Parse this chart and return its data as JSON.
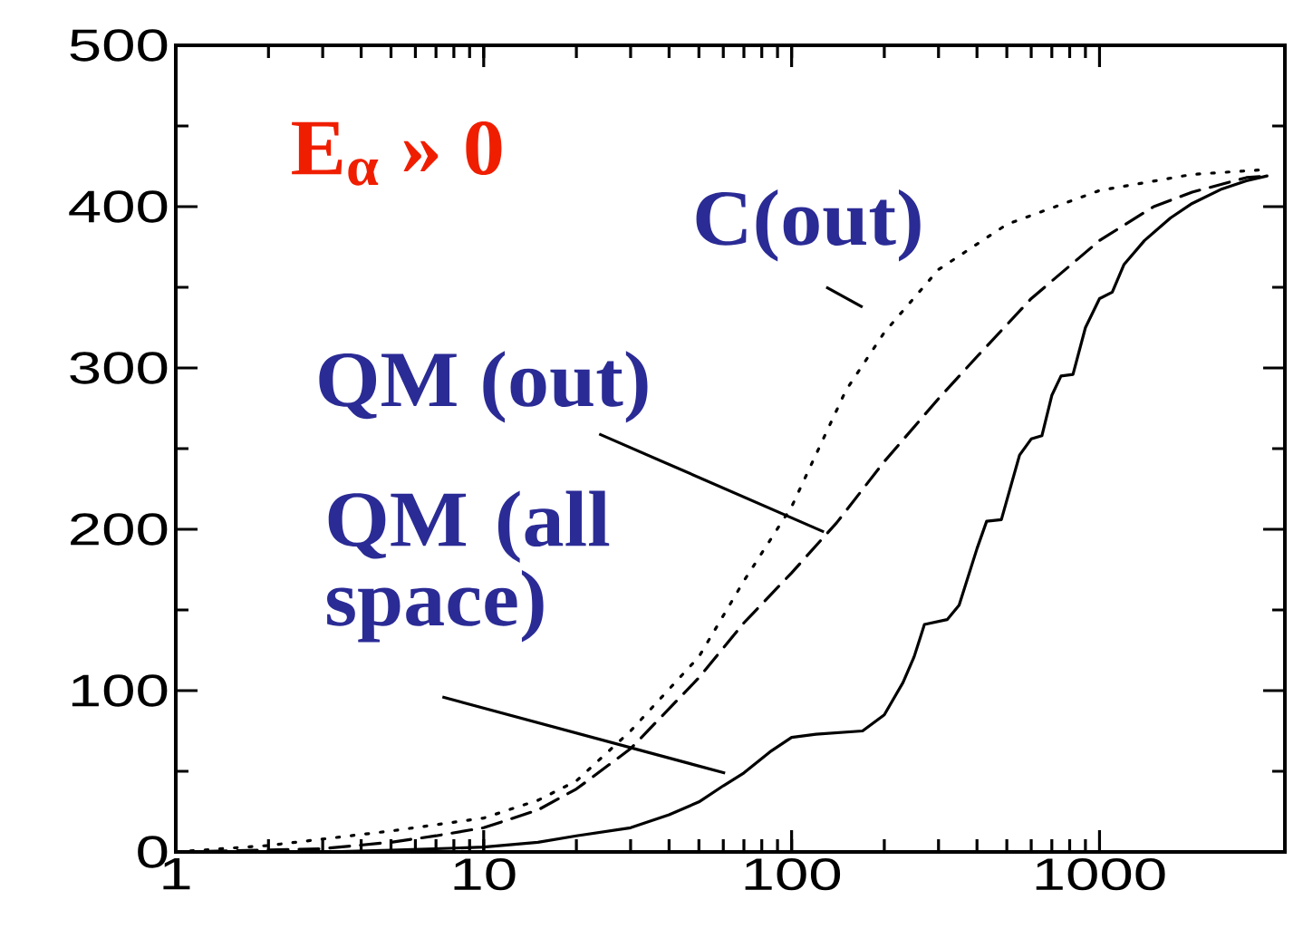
{
  "chart_data": {
    "type": "line",
    "log": "x",
    "xlim": [
      1,
      4000
    ],
    "ylim": [
      0,
      500
    ],
    "xticks": [
      1,
      10,
      100,
      1000
    ],
    "yticks": [
      0,
      100,
      200,
      300,
      400,
      500
    ],
    "annotations": [
      {
        "text": "QM (all space)",
        "x": 60,
        "y": 41
      },
      {
        "text": "QM (out)",
        "x": 140,
        "y": 204
      },
      {
        "text": "C(out)",
        "x": 200,
        "y": 322
      },
      "E$_{α}$ » 0"
    ],
    "series": [
      {
        "color": "#000000",
        "line_style": "solid",
        "x": [
          1,
          3,
          5,
          10,
          15,
          20,
          30,
          40,
          50,
          60,
          70,
          85,
          100,
          120,
          170,
          200,
          230,
          250,
          270,
          320,
          350,
          400,
          430,
          480,
          550,
          600,
          650,
          700,
          750,
          820,
          900,
          1000,
          1100,
          1200,
          1400,
          1700,
          2000,
          2500,
          3000,
          3500
        ],
        "values": [
          0,
          0,
          1,
          3,
          6,
          10,
          15,
          23,
          31,
          41,
          49,
          62,
          71,
          73,
          75,
          85,
          105,
          121,
          141,
          144,
          153,
          188,
          205,
          206,
          246,
          256,
          258,
          283,
          295,
          296,
          325,
          343,
          347,
          364,
          379,
          393,
          402,
          411,
          416,
          419
        ]
      },
      {
        "color": "#000000",
        "line_style": "dashed",
        "x": [
          1,
          3,
          5,
          7,
          10,
          15,
          20,
          30,
          50,
          70,
          100,
          140,
          200,
          300,
          400,
          600,
          1000,
          1500,
          2000,
          3000,
          3500
        ],
        "values": [
          0,
          2,
          6,
          10,
          15,
          26,
          39,
          64,
          108,
          142,
          173,
          204,
          242,
          281,
          307,
          343,
          379,
          400,
          409,
          418,
          419
        ]
      },
      {
        "color": "#000000",
        "line_style": "dotted",
        "x": [
          1,
          2,
          5,
          10,
          15,
          20,
          30,
          50,
          70,
          100,
          150,
          200,
          300,
          500,
          1000,
          2000,
          3500
        ],
        "values": [
          0,
          4,
          13,
          21,
          32,
          44,
          75,
          121,
          168,
          214,
          286,
          322,
          361,
          389,
          410,
          420,
          423
        ]
      }
    ]
  }
}
